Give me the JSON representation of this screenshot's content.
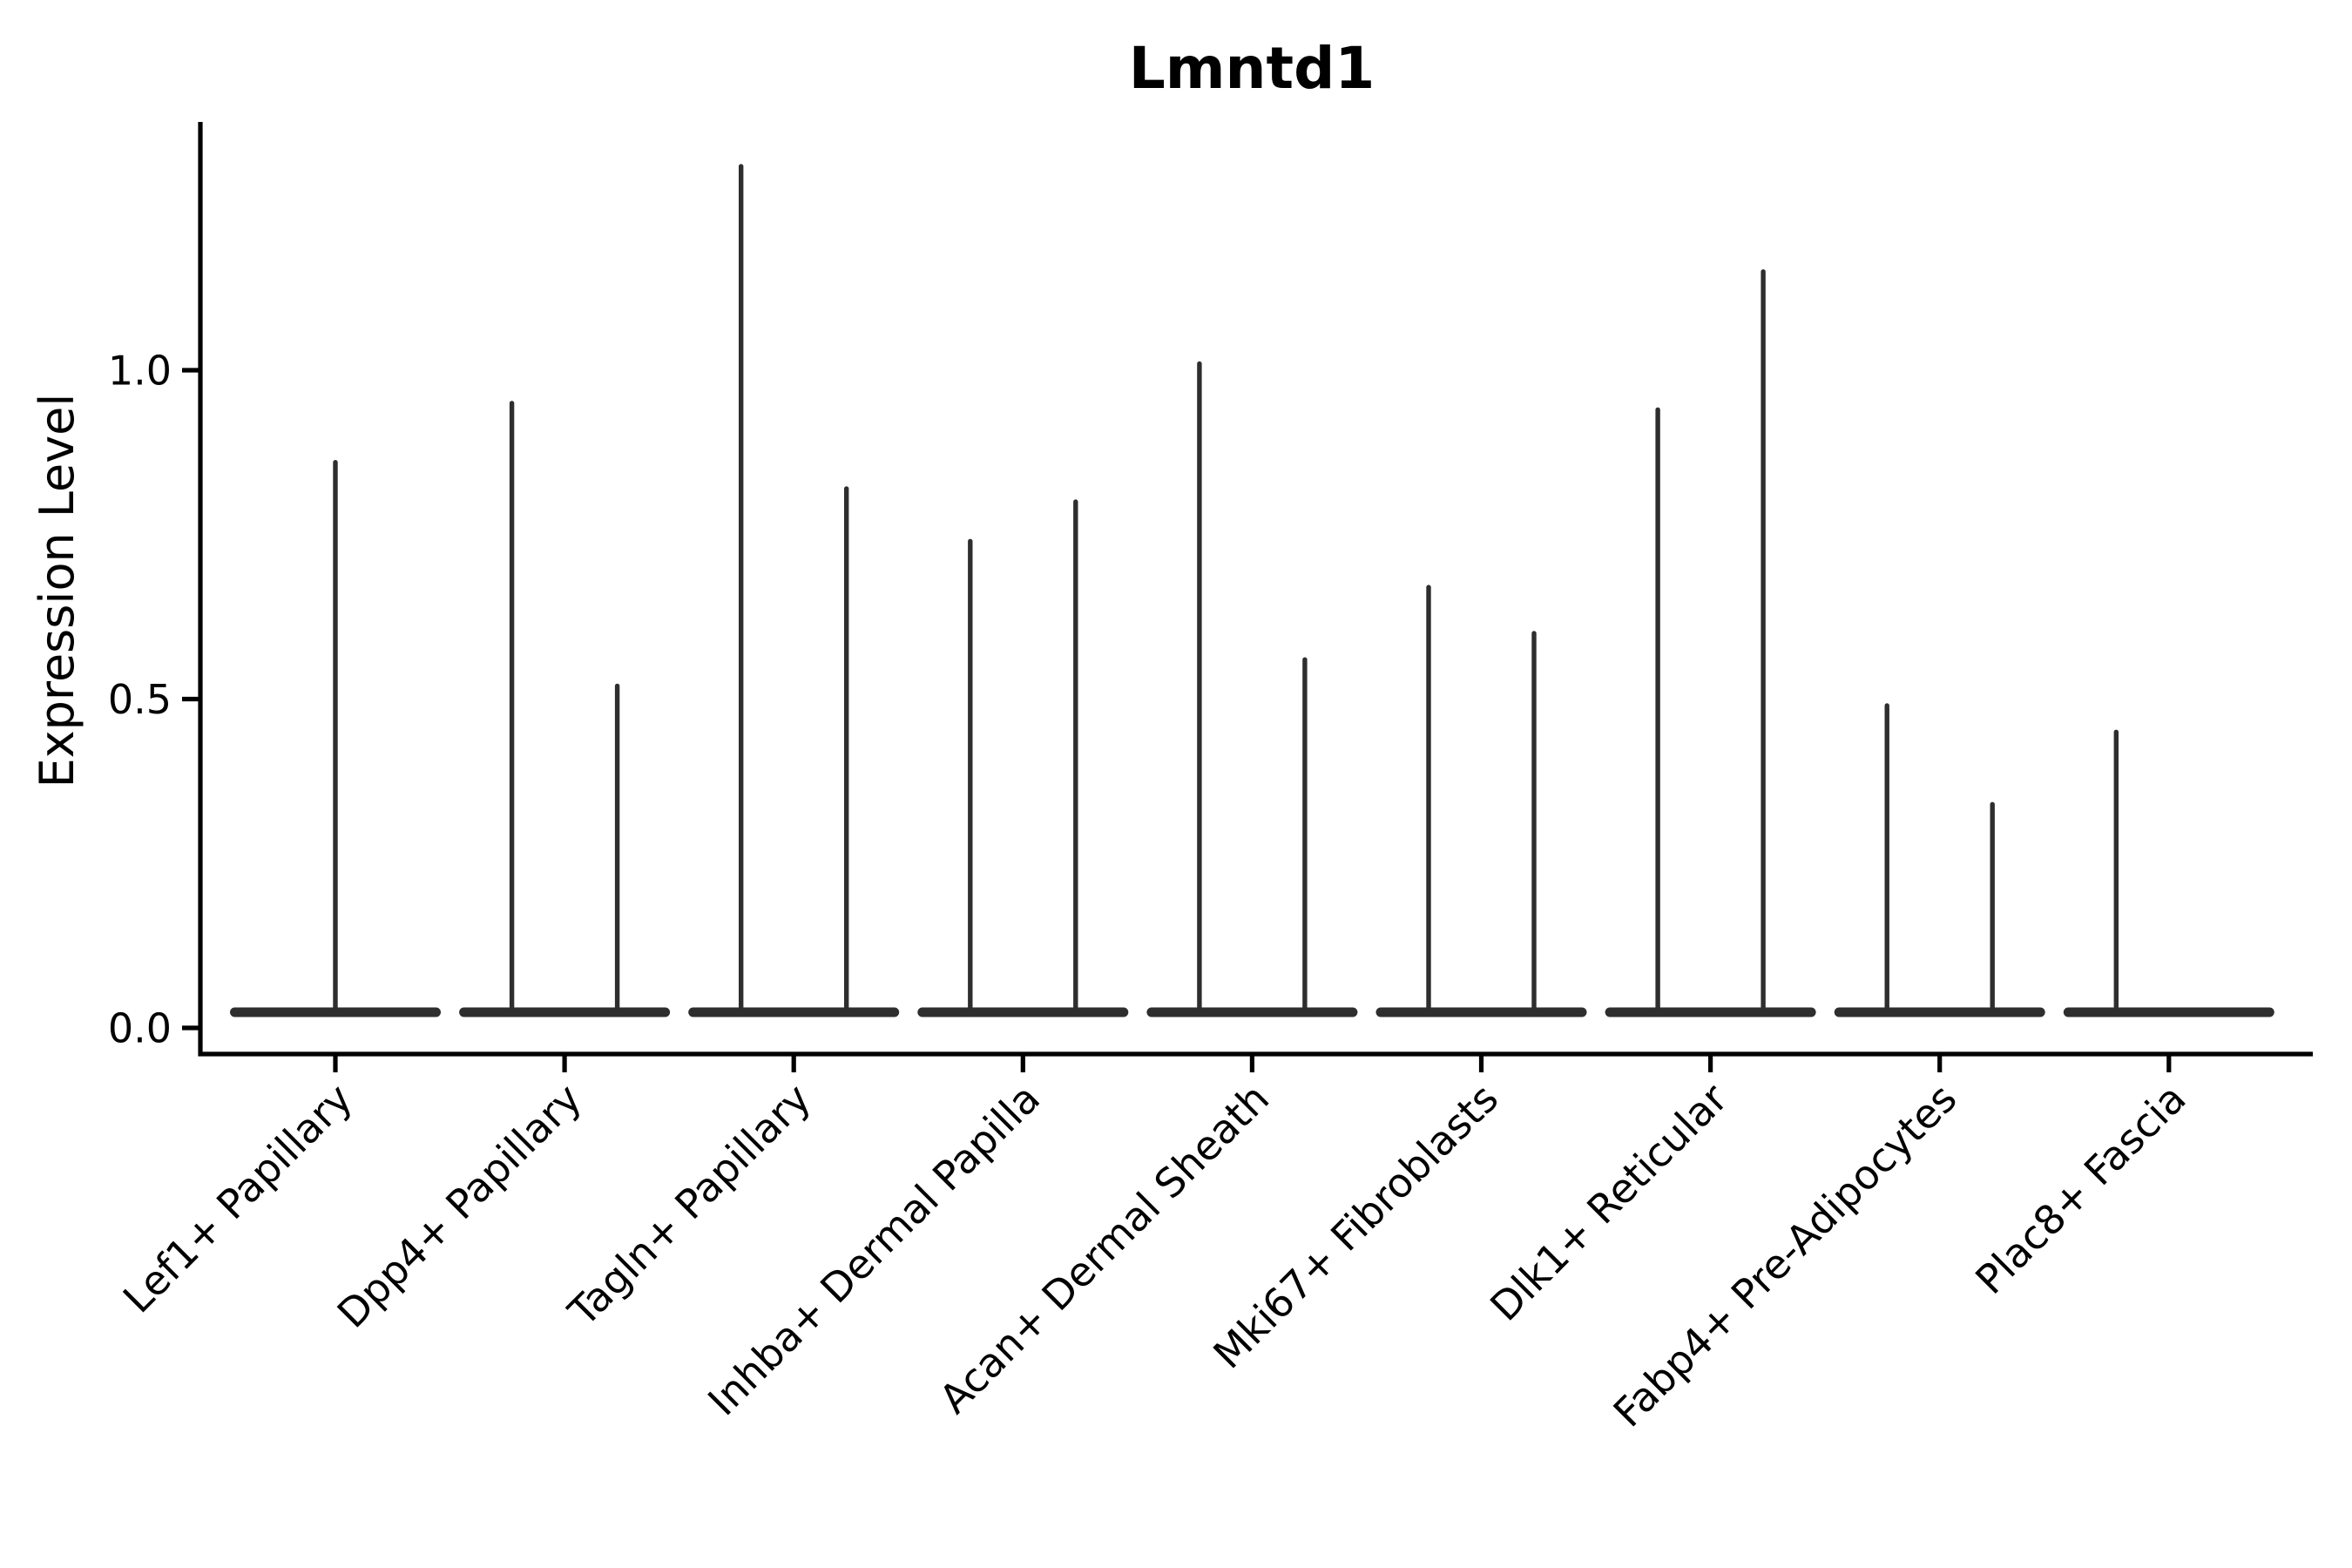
{
  "figure": {
    "background": "#ffffff"
  },
  "chart_data": {
    "type": "violin",
    "title": "Lmntd1",
    "xlabel": "",
    "ylabel": "Expression Level",
    "ytick_labels": [
      "0.0",
      "0.5",
      "1.0"
    ],
    "ytick_values": [
      0.0,
      0.5,
      1.0
    ],
    "ylim": [
      -0.04,
      1.37
    ],
    "grid": false,
    "legend_position": "none",
    "violin_color": "#2e2e2e",
    "axis_color": "#000000",
    "categories": [
      {
        "label": "Lef1+ Papillary",
        "violins": [
          {
            "side": "center",
            "max": 0.86
          }
        ]
      },
      {
        "label": "Dpp4+ Papillary",
        "violins": [
          {
            "side": "left",
            "max": 0.95
          },
          {
            "side": "right",
            "max": 0.52
          }
        ]
      },
      {
        "label": "Tagln+ Papillary",
        "violins": [
          {
            "side": "left",
            "max": 1.31
          },
          {
            "side": "right",
            "max": 0.82
          }
        ]
      },
      {
        "label": "Inhba+ Dermal Papilla",
        "violins": [
          {
            "side": "left",
            "max": 0.74
          },
          {
            "side": "right",
            "max": 0.8
          }
        ]
      },
      {
        "label": "Acan+ Dermal Sheath",
        "violins": [
          {
            "side": "left",
            "max": 1.01
          },
          {
            "side": "right",
            "max": 0.56
          }
        ]
      },
      {
        "label": "Mki67+ Fibroblasts",
        "violins": [
          {
            "side": "left",
            "max": 0.67
          },
          {
            "side": "right",
            "max": 0.6
          }
        ]
      },
      {
        "label": "Dlk1+ Reticular",
        "violins": [
          {
            "side": "left",
            "max": 0.94
          },
          {
            "side": "right",
            "max": 1.15
          }
        ]
      },
      {
        "label": "Fabp4+ Pre-Adipocytes",
        "violins": [
          {
            "side": "left",
            "max": 0.49
          },
          {
            "side": "right",
            "max": 0.34
          }
        ]
      },
      {
        "label": "Plac8+ Fascia",
        "violins": [
          {
            "side": "left",
            "max": 0.45
          }
        ]
      }
    ]
  }
}
